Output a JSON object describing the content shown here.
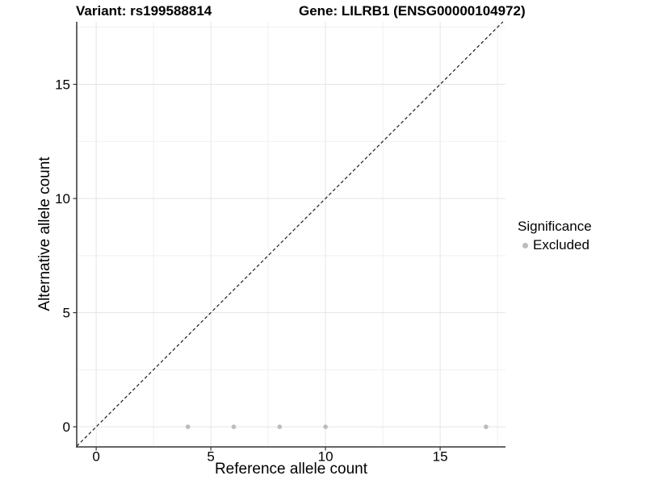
{
  "chart_data": {
    "type": "scatter",
    "title_left": "Variant: rs199588814",
    "title_right": "Gene: LILRB1 (ENSG00000104972)",
    "xlabel": "Reference allele count",
    "ylabel": "Alternative allele count",
    "xlim": [
      -0.85,
      17.85
    ],
    "ylim": [
      -0.88,
      17.74
    ],
    "x_ticks": [
      0,
      5,
      10,
      15
    ],
    "y_ticks": [
      0,
      5,
      10,
      15
    ],
    "grid": {
      "show": true,
      "step": 2.5,
      "major_every": 5,
      "major_color": "#e5e5e5",
      "minor_color": "#efefef"
    },
    "reference_line": {
      "type": "identity",
      "style": "dashed",
      "color": "#1a1a1a"
    },
    "axis_color": "#333333",
    "series": [
      {
        "name": "Excluded",
        "color": "#bcbcbc",
        "marker": "circle",
        "points": [
          [
            4,
            0
          ],
          [
            6,
            0
          ],
          [
            8,
            0
          ],
          [
            10,
            0
          ],
          [
            17,
            0
          ]
        ]
      }
    ],
    "legend": {
      "title": "Significance",
      "position": "right",
      "items": [
        {
          "label": "Excluded",
          "color": "#bcbcbc"
        }
      ]
    }
  }
}
